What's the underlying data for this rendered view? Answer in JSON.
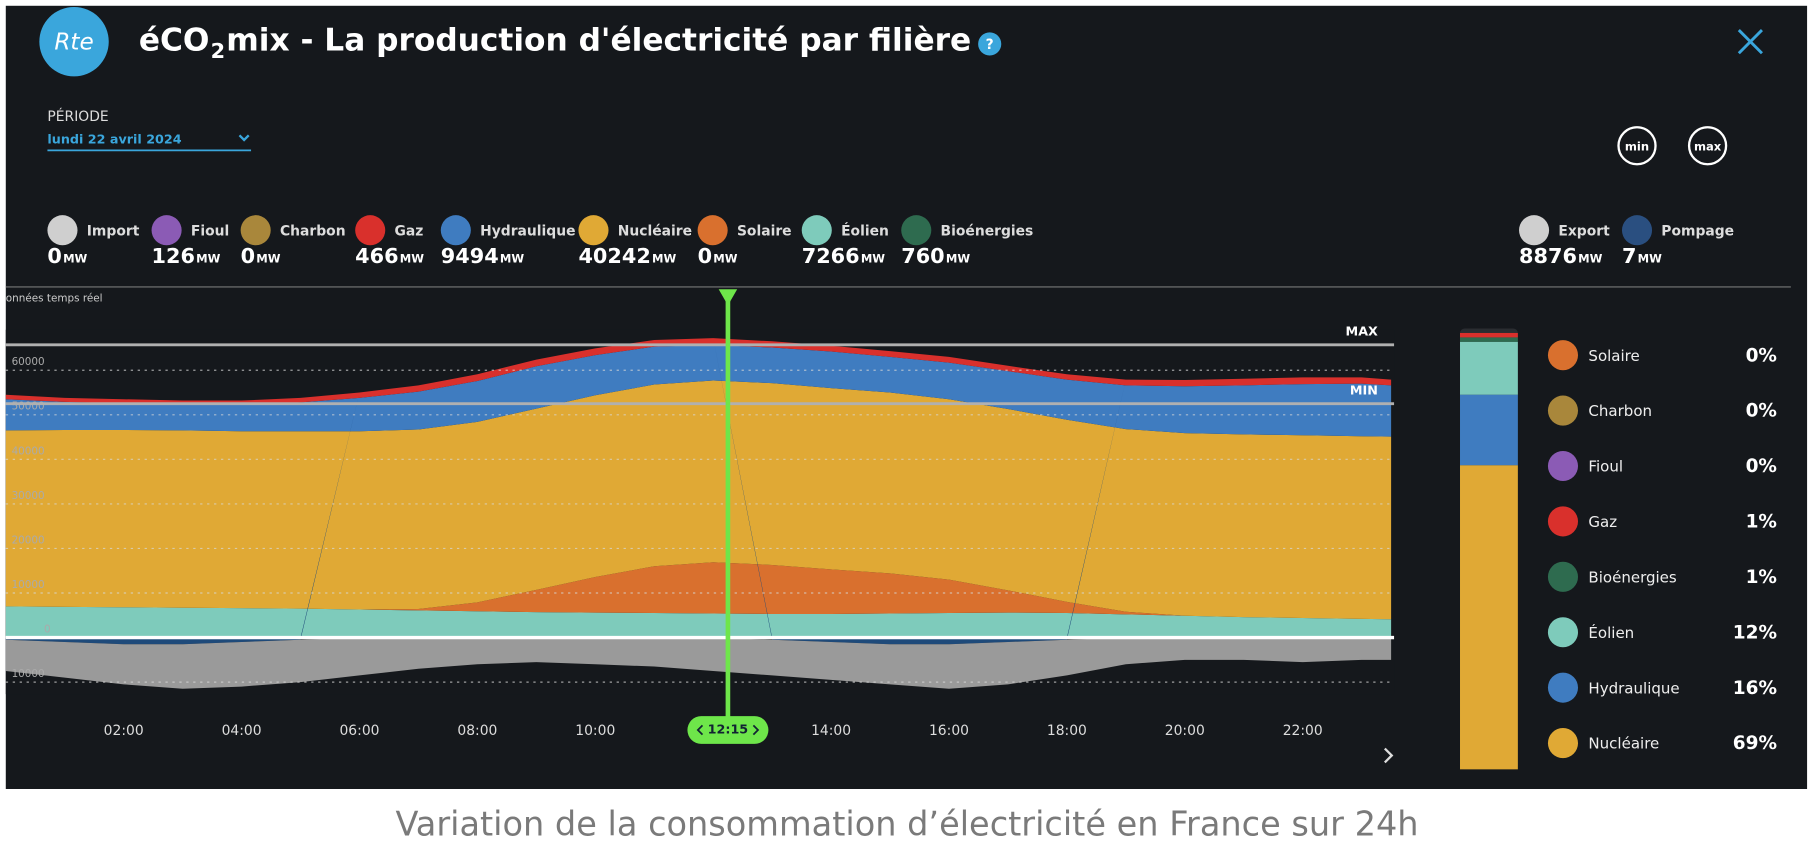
{
  "header": {
    "logo": "Rte",
    "title_start": "éCO",
    "title_sub": "2",
    "title_end": "mix - La production d'électricité par filière",
    "help": "?",
    "period_label": "PÉRIODE",
    "period_date": "lundi 22 avril 2024",
    "buttons": [
      "min",
      "max"
    ],
    "unit": "MW",
    "sources": [
      {
        "name": "Import",
        "value": "0",
        "color": "#cfcfcf"
      },
      {
        "name": "Fioul",
        "value": "126",
        "color": "#8b5bb5"
      },
      {
        "name": "Charbon",
        "value": "0",
        "color": "#a9873b"
      },
      {
        "name": "Gaz",
        "value": "466",
        "color": "#d9302c"
      },
      {
        "name": "Hydraulique",
        "value": "9494",
        "color": "#3f7cc0"
      },
      {
        "name": "Nucléaire",
        "value": "40242",
        "color": "#e0a935"
      },
      {
        "name": "Solaire",
        "value": "0",
        "color": "#d9702e"
      },
      {
        "name": "Éolien",
        "value": "7266",
        "color": "#7ecbbb"
      },
      {
        "name": "Bioénergies",
        "value": "760",
        "color": "#2e6b4f"
      }
    ],
    "exchanges": [
      {
        "name": "Export",
        "value": "8876",
        "color": "#cfcfcf"
      },
      {
        "name": "Pompage",
        "value": "7",
        "color": "#2a4f80"
      }
    ]
  },
  "chart_data": {
    "type": "area",
    "note": "onnées temps réel",
    "x": [
      0,
      1,
      2,
      3,
      4,
      5,
      6,
      7,
      8,
      9,
      10,
      11,
      12,
      13,
      14,
      15,
      16,
      17,
      18,
      19,
      20,
      21,
      22,
      23,
      23.5
    ],
    "series": [
      {
        "name": "Éolien",
        "color": "#7ecbbb",
        "values": [
          7000,
          6900,
          6800,
          6700,
          6600,
          6500,
          6300,
          6100,
          5900,
          5700,
          5600,
          5500,
          5400,
          5300,
          5300,
          5400,
          5500,
          5600,
          5500,
          5200,
          4900,
          4600,
          4400,
          4200,
          4100
        ]
      },
      {
        "name": "Solaire",
        "color": "#d9702e",
        "values": [
          0,
          0,
          0,
          0,
          0,
          0,
          0,
          300,
          2000,
          5000,
          8000,
          10500,
          11500,
          11000,
          10000,
          9000,
          7500,
          5000,
          2500,
          600,
          0,
          0,
          0,
          0,
          0
        ]
      },
      {
        "name": "Nucléaire",
        "color": "#e0a935",
        "values": [
          39500,
          39700,
          39800,
          39800,
          39700,
          39800,
          40000,
          40300,
          40500,
          40700,
          40800,
          40800,
          40800,
          40800,
          40700,
          40600,
          40500,
          40700,
          40900,
          41000,
          41000,
          41000,
          41000,
          41000,
          41000
        ]
      },
      {
        "name": "Hydraulique",
        "color": "#3f7cc0",
        "values": [
          7000,
          6300,
          6000,
          5800,
          6000,
          6500,
          7500,
          8500,
          9200,
          9500,
          9000,
          8500,
          8000,
          8000,
          8200,
          8000,
          8200,
          8500,
          9000,
          9800,
          10500,
          11000,
          11500,
          11800,
          11500
        ]
      },
      {
        "name": "Gaz",
        "color": "#d9302c",
        "values": [
          1000,
          900,
          900,
          900,
          900,
          1000,
          1200,
          1400,
          1500,
          1500,
          1500,
          1500,
          1500,
          1400,
          1300,
          1300,
          1300,
          1200,
          1200,
          1300,
          1400,
          1500,
          1500,
          1400,
          1300
        ]
      },
      {
        "name": "Pompage",
        "color": "#1e4a7a",
        "values": [
          -500,
          -1000,
          -1500,
          -1500,
          -1000,
          -500,
          0,
          0,
          0,
          0,
          0,
          0,
          0,
          -500,
          -1000,
          -1500,
          -1500,
          -1000,
          -500,
          0,
          0,
          0,
          0,
          0,
          0
        ]
      },
      {
        "name": "Export",
        "color": "#9a9a9a",
        "values": [
          -7000,
          -8000,
          -9000,
          -10000,
          -10000,
          -9500,
          -8500,
          -7000,
          -6000,
          -5500,
          -6000,
          -6500,
          -7500,
          -8000,
          -8500,
          -9000,
          -10000,
          -9500,
          -8000,
          -6000,
          -5000,
          -5000,
          -5500,
          -5000,
          -5000
        ]
      }
    ],
    "xlim": [
      0,
      23.55
    ],
    "ylim": [
      -12700,
      69100
    ],
    "xticks": [
      {
        "value": 2,
        "label": "02:00"
      },
      {
        "value": 4,
        "label": "04:00"
      },
      {
        "value": 6,
        "label": "06:00"
      },
      {
        "value": 8,
        "label": "08:00"
      },
      {
        "value": 10,
        "label": "10:00"
      },
      {
        "value": 12,
        "label": "12:00"
      },
      {
        "value": 14,
        "label": "14:00"
      },
      {
        "value": 16,
        "label": "16:00"
      },
      {
        "value": 18,
        "label": "18:00"
      },
      {
        "value": 20,
        "label": "20:00"
      },
      {
        "value": 22,
        "label": "22:00"
      }
    ],
    "yticks": [
      60000,
      50000,
      40000,
      30000,
      20000,
      10000,
      0,
      {
        "value": -10000,
        "label": "10000"
      }
    ],
    "grid": true,
    "reference_lines": [
      {
        "value": 65700,
        "label": "MAX"
      },
      {
        "value": 52500,
        "label": "MIN"
      }
    ],
    "cursor": {
      "x": 12.25,
      "label": "12:15"
    }
  },
  "legend": {
    "items": [
      {
        "name": "Solaire",
        "share": 0,
        "share_label": "0%",
        "color": "#d9702e"
      },
      {
        "name": "Charbon",
        "share": 0,
        "share_label": "0%",
        "color": "#a9873b"
      },
      {
        "name": "Fioul",
        "share": 0,
        "share_label": "0%",
        "color": "#8b5bb5"
      },
      {
        "name": "Gaz",
        "share": 1,
        "share_label": "1%",
        "color": "#d9302c"
      },
      {
        "name": "Bioénergies",
        "share": 1,
        "share_label": "1%",
        "color": "#2e6b4f"
      },
      {
        "name": "Éolien",
        "share": 12,
        "share_label": "12%",
        "color": "#7ecbbb"
      },
      {
        "name": "Hydraulique",
        "share": 16,
        "share_label": "16%",
        "color": "#3f7cc0"
      },
      {
        "name": "Nucléaire",
        "share": 69,
        "share_label": "69%",
        "color": "#e0a935"
      }
    ]
  },
  "caption": "Variation de la consommation d’électricité en France sur 24h"
}
